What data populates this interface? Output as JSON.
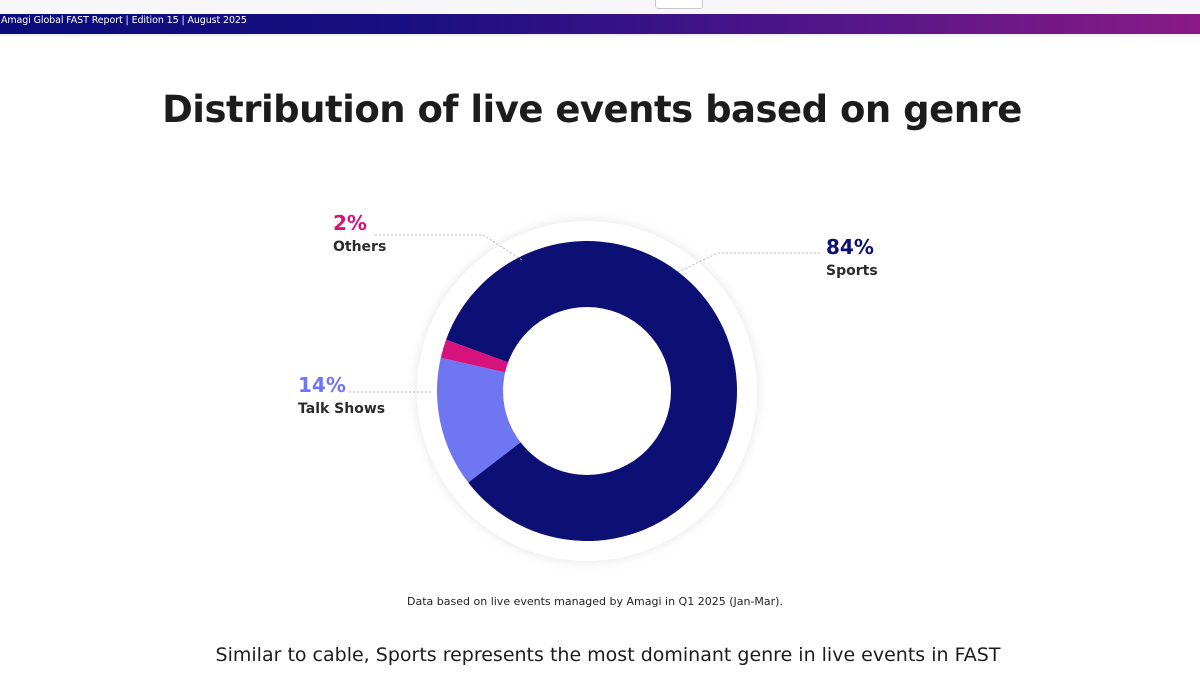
{
  "header": {
    "report_line": "Amagi Global FAST Report | Edition 15 | August 2025"
  },
  "page": {
    "title": "Distribution of live events based on genre",
    "footnote": "Data based on live events managed by Amagi in Q1 2025 (Jan-Mar).",
    "body_text": "Similar to cable, Sports represents the most dominant genre in live events in FAST"
  },
  "chart_data": {
    "type": "pie",
    "variant": "donut",
    "title": "Distribution of live events based on genre",
    "slices": [
      {
        "label": "Sports",
        "value": 84,
        "display": "84%",
        "color": "#0c0f73"
      },
      {
        "label": "Talk Shows",
        "value": 14,
        "display": "14%",
        "color": "#6e76f2"
      },
      {
        "label": "Others",
        "value": 2,
        "display": "2%",
        "color": "#d6137d"
      }
    ],
    "legend": "none",
    "labels": "outside with dotted leader lines"
  },
  "colors": {
    "banner_start": "#0a0b7a",
    "banner_end": "#8a1a86",
    "sports": "#0c0f73",
    "talk_shows": "#6e76f2",
    "others": "#d6137d",
    "title_text": "#1c1c1c"
  }
}
